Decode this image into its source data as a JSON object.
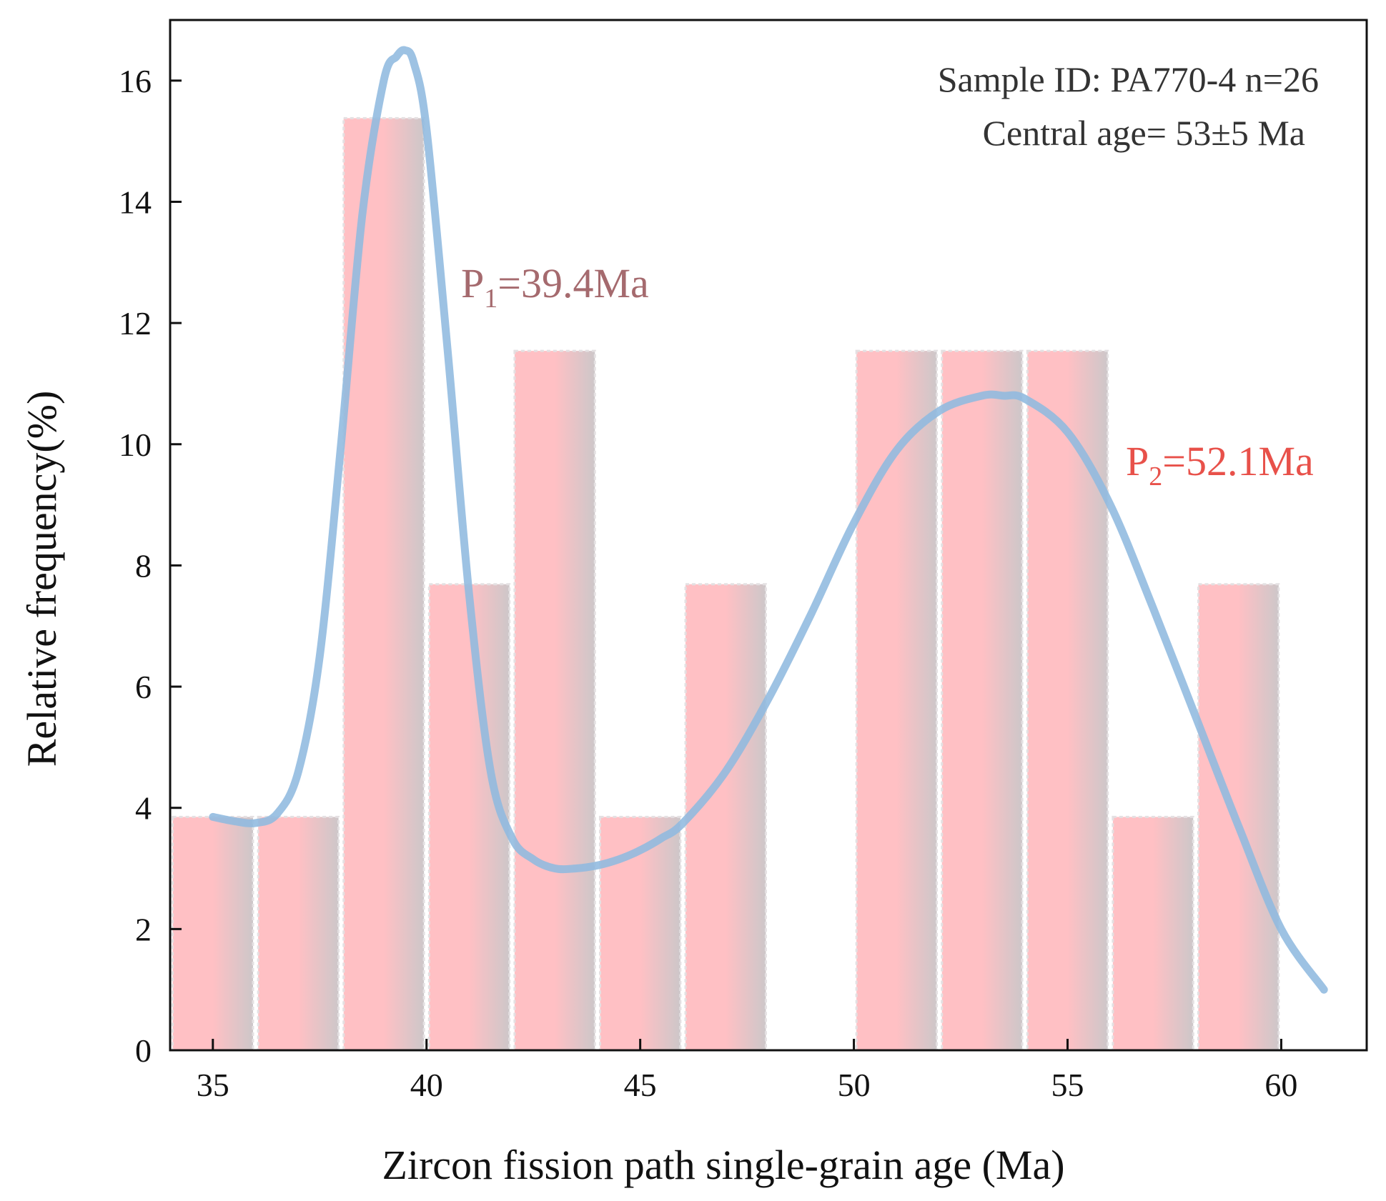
{
  "chart_data": {
    "type": "bar",
    "xlabel": "Zircon fission path single-grain age (Ma)",
    "ylabel": "Relative frequency(%)",
    "xlim": [
      34,
      62
    ],
    "ylim": [
      0,
      17
    ],
    "x_ticks": [
      35,
      40,
      45,
      50,
      55,
      60
    ],
    "y_ticks": [
      0,
      2,
      4,
      6,
      8,
      10,
      12,
      14,
      16
    ],
    "bin_width": 2,
    "bins": [
      {
        "center": 35,
        "value": 3.85
      },
      {
        "center": 37,
        "value": 3.85
      },
      {
        "center": 39,
        "value": 15.38
      },
      {
        "center": 41,
        "value": 7.69
      },
      {
        "center": 43,
        "value": 11.54
      },
      {
        "center": 45,
        "value": 3.85
      },
      {
        "center": 47,
        "value": 7.69
      },
      {
        "center": 49,
        "value": 0
      },
      {
        "center": 51,
        "value": 11.54
      },
      {
        "center": 53,
        "value": 11.54
      },
      {
        "center": 55,
        "value": 11.54
      },
      {
        "center": 57,
        "value": 3.85
      },
      {
        "center": 59,
        "value": 7.69
      }
    ],
    "density_curve": {
      "x": [
        35,
        35.5,
        36,
        36.5,
        37,
        37.5,
        38,
        38.5,
        39,
        39.3,
        39.5,
        39.7,
        40,
        40.5,
        41,
        41.5,
        42,
        42.5,
        43,
        43.5,
        44,
        44.5,
        45,
        45.5,
        46,
        47,
        48,
        49,
        50,
        51,
        52,
        53,
        53.5,
        54,
        55,
        56,
        57,
        58,
        59,
        60,
        61
      ],
      "y": [
        3.85,
        3.78,
        3.75,
        3.9,
        4.6,
        6.5,
        10.0,
        13.8,
        16.0,
        16.4,
        16.5,
        16.3,
        15.2,
        11.5,
        7.5,
        4.6,
        3.5,
        3.15,
        3.0,
        3.0,
        3.05,
        3.15,
        3.3,
        3.5,
        3.75,
        4.6,
        5.8,
        7.2,
        8.7,
        9.9,
        10.55,
        10.8,
        10.8,
        10.75,
        10.2,
        9.0,
        7.3,
        5.5,
        3.7,
        2.0,
        1.0
      ]
    },
    "annotations": {
      "sample_id": "Sample ID: PA770-4 n=26",
      "central_age": "Central age= 53±5 Ma",
      "peak1": {
        "label": "P",
        "sub": "1",
        "value": "=39.4Ma",
        "color": "#a56a6e"
      },
      "peak2": {
        "label": "P",
        "sub": "2",
        "value": "=52.1Ma",
        "color": "#e8514a"
      }
    },
    "colors": {
      "bar_left": "#ffc0c4",
      "bar_right": "#cdc7c9",
      "bar_border": "#e4e0e2",
      "curve": "#8fbadf",
      "axis": "#111111"
    }
  }
}
